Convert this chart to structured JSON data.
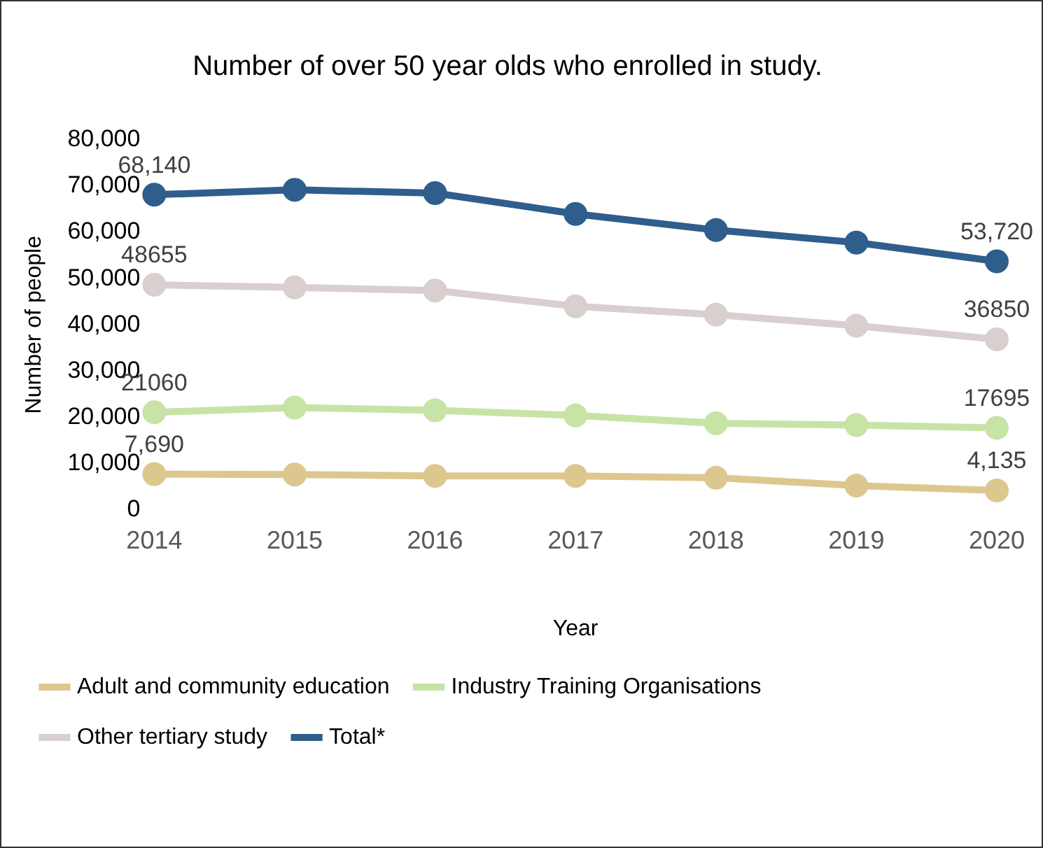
{
  "chart_data": {
    "type": "line",
    "title": "Number of over 50 year olds who enrolled in study.",
    "xlabel": "Year",
    "ylabel": "Number of people",
    "categories": [
      "2014",
      "2015",
      "2016",
      "2017",
      "2018",
      "2019",
      "2020"
    ],
    "series": [
      {
        "name": "Adult and community education",
        "color": "#dcc88f",
        "values": [
          7690,
          7600,
          7300,
          7300,
          6900,
          5200,
          4135
        ],
        "value_labels": [
          "7,690",
          null,
          null,
          null,
          null,
          null,
          "4,135"
        ]
      },
      {
        "name": "Industry Training Organisations",
        "color": "#c8e3a6",
        "values": [
          21060,
          22100,
          21500,
          20400,
          18700,
          18300,
          17695
        ],
        "value_labels": [
          "21060",
          null,
          null,
          null,
          null,
          null,
          "17695"
        ]
      },
      {
        "name": "Other tertiary study",
        "color": "#d9cfcf",
        "values": [
          48655,
          48100,
          47400,
          44000,
          42200,
          39800,
          36850
        ],
        "value_labels": [
          "48655",
          null,
          null,
          null,
          null,
          null,
          "36850"
        ]
      },
      {
        "name": "Total*",
        "color": "#2f5e8c",
        "values": [
          68140,
          69200,
          68500,
          64000,
          60500,
          57800,
          53720
        ],
        "value_labels": [
          "68,140",
          null,
          null,
          null,
          null,
          null,
          "53,720"
        ]
      }
    ],
    "ylim": [
      0,
      80000
    ],
    "yticks": [
      0,
      {
        "value": 10000,
        "label": "10,000"
      },
      {
        "value": 20000,
        "label": "20,000"
      },
      {
        "value": 30000,
        "label": "30,000"
      },
      {
        "value": 40000,
        "label": "40,000"
      },
      {
        "value": 50000,
        "label": "50,000"
      },
      {
        "value": 60000,
        "label": "60,000"
      },
      {
        "value": 70000,
        "label": "70,000"
      },
      {
        "value": 80000,
        "label": "80,000"
      }
    ],
    "grid": false,
    "legend": "bottom",
    "marker": "circle",
    "line_style": "solid"
  }
}
